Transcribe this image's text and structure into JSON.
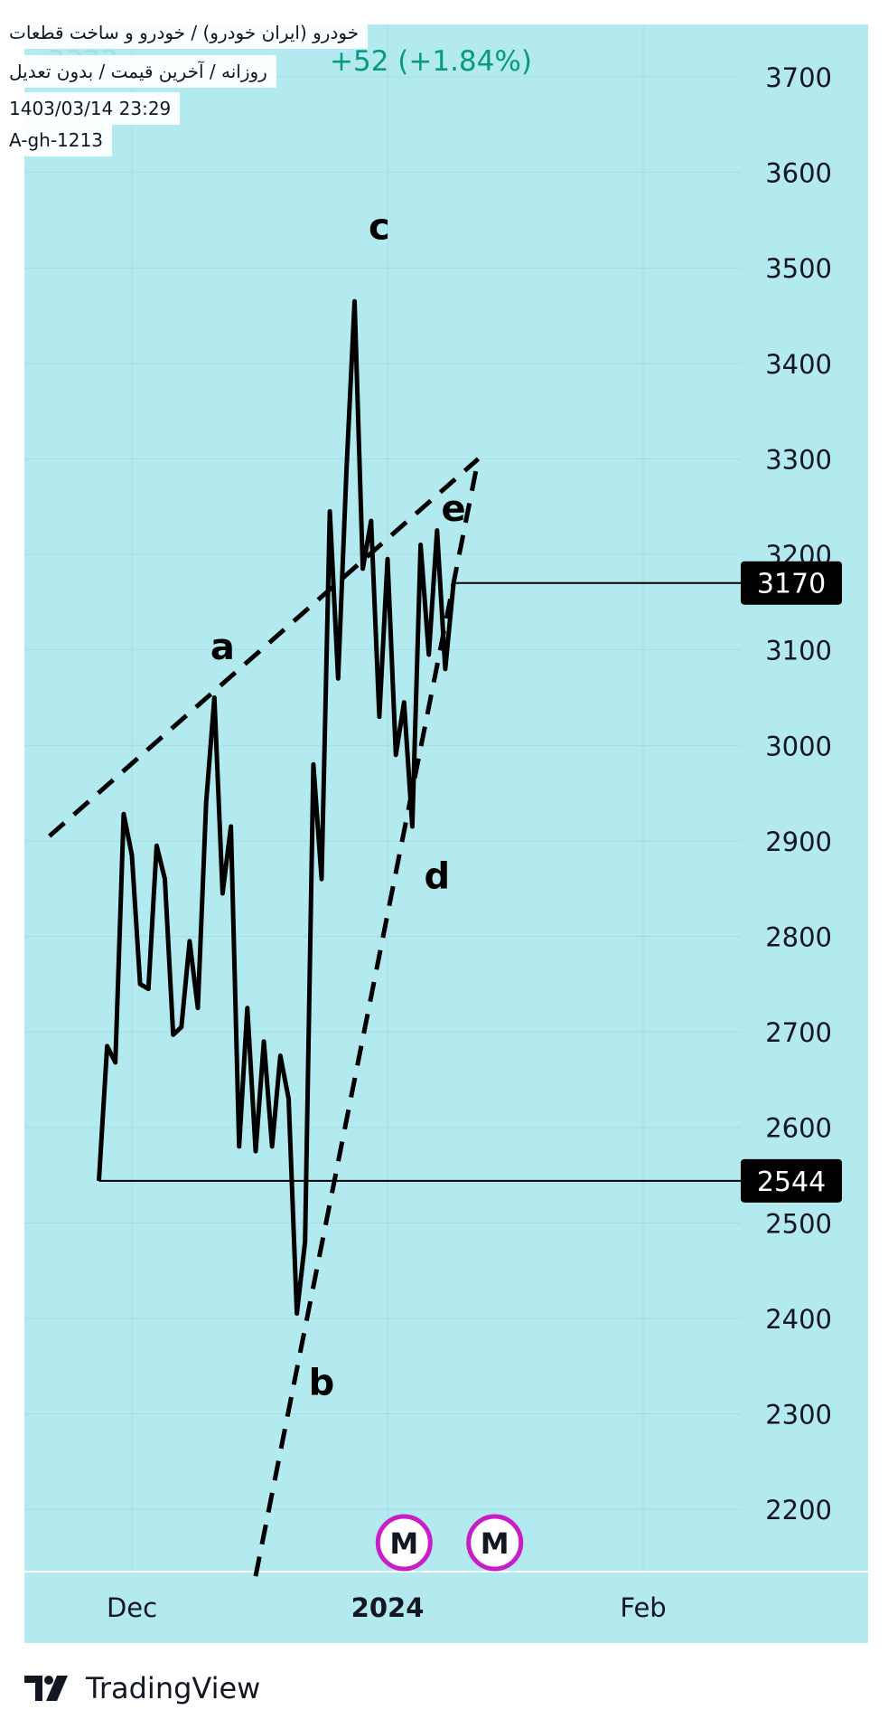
{
  "header": {
    "symbol_line": "خودرو (ایران خودرو) / خودرو و ساخت قطعات",
    "settings_line": "روزانه / آخرین قیمت / بدون تعدیل",
    "datetime": "1403/03/14 23:29",
    "author": "A-gh-1213",
    "ghost_price": "3373",
    "ghost_change": "+52 (+1.84%)"
  },
  "branding": {
    "name": "TradingView"
  },
  "colors": {
    "background": "#b3eaf0",
    "price_line": "#000000",
    "grid": "#a6dde3",
    "label_bg": "#000000",
    "label_text": "#ffffff",
    "marker_ring": "#c81ec8",
    "ghost_text": "#089981"
  },
  "chart_data": {
    "type": "line",
    "title": "",
    "xlabel": "",
    "ylabel": "",
    "ylim": [
      2120,
      3750
    ],
    "y_ticks": [
      2200,
      2300,
      2400,
      2500,
      2600,
      2700,
      2800,
      2900,
      3000,
      3100,
      3200,
      3300,
      3400,
      3500,
      3600,
      3700
    ],
    "x_ticks": [
      {
        "label": "Dec",
        "date": "2023-12-01",
        "bold": false
      },
      {
        "label": "2024",
        "date": "2024-01-01",
        "bold": true
      },
      {
        "label": "Feb",
        "date": "2024-02-01",
        "bold": false
      }
    ],
    "grid": true,
    "series": [
      {
        "points": [
          [
            "2023-11-27",
            2544
          ],
          [
            "2023-11-28",
            2685
          ],
          [
            "2023-11-29",
            2668
          ],
          [
            "2023-11-30",
            2928
          ],
          [
            "2023-12-01",
            2885
          ],
          [
            "2023-12-02",
            2750
          ],
          [
            "2023-12-03",
            2745
          ],
          [
            "2023-12-04",
            2895
          ],
          [
            "2023-12-05",
            2860
          ],
          [
            "2023-12-06",
            2697
          ],
          [
            "2023-12-07",
            2705
          ],
          [
            "2023-12-08",
            2795
          ],
          [
            "2023-12-09",
            2725
          ],
          [
            "2023-12-10",
            2940
          ],
          [
            "2023-12-11",
            3050
          ],
          [
            "2023-12-12",
            2845
          ],
          [
            "2023-12-13",
            2915
          ],
          [
            "2023-12-14",
            2580
          ],
          [
            "2023-12-15",
            2725
          ],
          [
            "2023-12-16",
            2575
          ],
          [
            "2023-12-17",
            2690
          ],
          [
            "2023-12-18",
            2580
          ],
          [
            "2023-12-19",
            2675
          ],
          [
            "2023-12-20",
            2630
          ],
          [
            "2023-12-21",
            2405
          ],
          [
            "2023-12-22",
            2480
          ],
          [
            "2023-12-23",
            2980
          ],
          [
            "2023-12-24",
            2860
          ],
          [
            "2023-12-25",
            3245
          ],
          [
            "2023-12-26",
            3070
          ],
          [
            "2023-12-27",
            3285
          ],
          [
            "2023-12-28",
            3465
          ],
          [
            "2023-12-29",
            3185
          ],
          [
            "2023-12-30",
            3235
          ],
          [
            "2023-12-31",
            3030
          ],
          [
            "2024-01-01",
            3195
          ],
          [
            "2024-01-02",
            2990
          ],
          [
            "2024-01-03",
            3045
          ],
          [
            "2024-01-04",
            2915
          ],
          [
            "2024-01-05",
            3210
          ],
          [
            "2024-01-06",
            3095
          ],
          [
            "2024-01-07",
            3225
          ],
          [
            "2024-01-08",
            3080
          ],
          [
            "2024-01-09",
            3170
          ]
        ]
      }
    ],
    "price_labels": [
      3170,
      2544
    ],
    "horizontal_lines": [
      {
        "value": 3170,
        "from": "2024-01-09"
      },
      {
        "value": 2544,
        "from": "2023-11-27"
      }
    ],
    "trendlines": [
      {
        "from": [
          "2023-11-21",
          2905
        ],
        "to": [
          "2023-12-30",
          3195
        ],
        "extend_to": [
          "2024-01-12",
          3300
        ],
        "style": "dashed"
      },
      {
        "from": [
          "2023-12-16",
          2130
        ],
        "to": [
          "2024-01-04",
          2915
        ],
        "extend_to": [
          "2024-01-12",
          3300
        ],
        "style": "dashed"
      }
    ],
    "annotations": [
      {
        "text": "a",
        "x": "2023-12-12",
        "y": 3090
      },
      {
        "text": "b",
        "x": "2023-12-24",
        "y": 2320
      },
      {
        "text": "c",
        "x": "2023-12-31",
        "y": 3530
      },
      {
        "text": "d",
        "x": "2024-01-07",
        "y": 2850
      },
      {
        "text": "e",
        "x": "2024-01-09",
        "y": 3235
      }
    ],
    "event_markers": [
      {
        "label": "M",
        "x": "2024-01-03"
      },
      {
        "label": "M",
        "x": "2024-01-14"
      }
    ]
  }
}
